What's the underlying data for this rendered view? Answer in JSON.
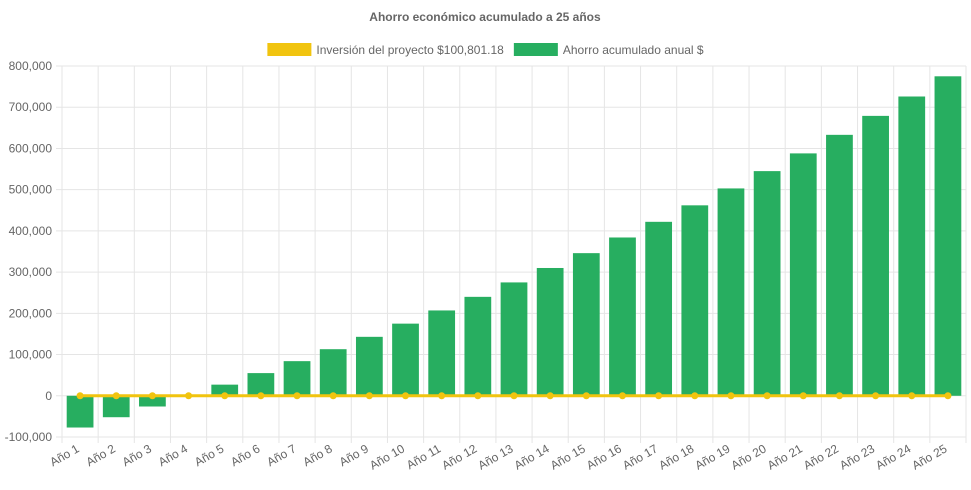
{
  "chart_data": {
    "type": "bar",
    "title": "Ahorro económico acumulado a 25 años",
    "categories": [
      "Año 1",
      "Año 2",
      "Año 3",
      "Año 4",
      "Año 5",
      "Año 6",
      "Año 7",
      "Año 8",
      "Año 9",
      "Año 10",
      "Año 11",
      "Año 12",
      "Año 13",
      "Año 14",
      "Año 15",
      "Año 16",
      "Año 17",
      "Año 18",
      "Año 19",
      "Año 20",
      "Año 21",
      "Año 22",
      "Año 23",
      "Año 24",
      "Año 25"
    ],
    "y_ticks": [
      "800,000",
      "700,000",
      "600,000",
      "500,000",
      "400,000",
      "300,000",
      "200,000",
      "100,000",
      "0",
      "-100,000"
    ],
    "ylim": [
      -100000,
      800000
    ],
    "grid": true,
    "legend_position": "top",
    "series": [
      {
        "name": "Inversión del proyecto $100,801.18",
        "kind": "line",
        "color": "#f1c40f",
        "values": [
          0,
          0,
          0,
          0,
          0,
          0,
          0,
          0,
          0,
          0,
          0,
          0,
          0,
          0,
          0,
          0,
          0,
          0,
          0,
          0,
          0,
          0,
          0,
          0,
          0
        ]
      },
      {
        "name": "Ahorro acumulado anual $",
        "kind": "bar",
        "color": "#27ae60",
        "values": [
          -77000,
          -52000,
          -26000,
          0,
          27000,
          55000,
          84000,
          113000,
          143000,
          175000,
          207000,
          240000,
          275000,
          310000,
          346000,
          384000,
          422000,
          462000,
          503000,
          545000,
          588000,
          633000,
          679000,
          726000,
          775000
        ]
      }
    ]
  }
}
